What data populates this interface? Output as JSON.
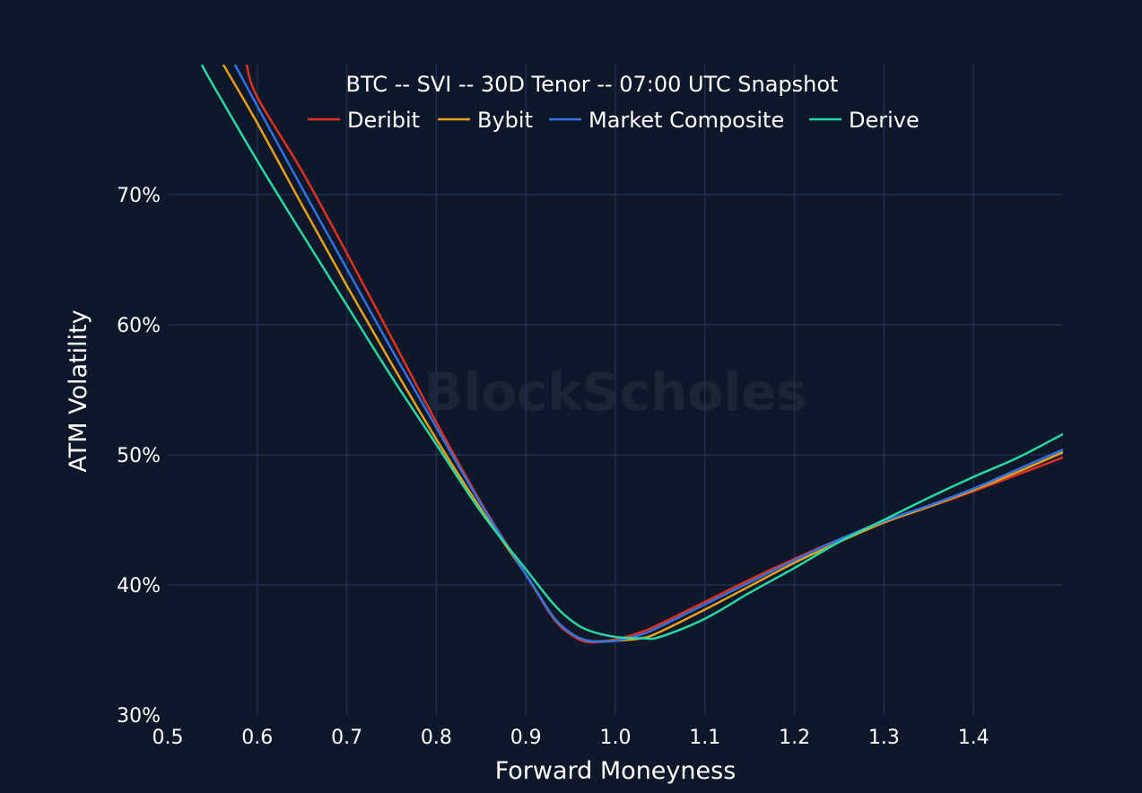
{
  "watermark": "BlockScholes",
  "chart_data": {
    "type": "line",
    "title": "BTC -- SVI -- 30D Tenor -- 07:00 UTC Snapshot",
    "xlabel": "Forward Moneyness",
    "ylabel": "ATM Volatility",
    "xlim": [
      0.5,
      1.5
    ],
    "ylim": [
      30,
      80
    ],
    "x_ticks": [
      0.5,
      0.6,
      0.7,
      0.8,
      0.9,
      1.0,
      1.1,
      1.2,
      1.3,
      1.4
    ],
    "x_tick_labels": [
      "0.5",
      "0.6",
      "0.7",
      "0.8",
      "0.9",
      "1.0",
      "1.1",
      "1.2",
      "1.3",
      "1.4"
    ],
    "y_ticks": [
      30,
      40,
      50,
      60,
      70
    ],
    "y_tick_labels": [
      "30%",
      "40%",
      "50%",
      "60%",
      "70%"
    ],
    "grid": true,
    "legend_position": "top-center",
    "background": "#0f182a",
    "grid_color": "#1f2f4e",
    "series": [
      {
        "name": "Deribit",
        "color": "#e0311f",
        "x": [
          0.588,
          0.6,
          0.65,
          0.7,
          0.75,
          0.8,
          0.85,
          0.9,
          0.93,
          0.95,
          0.97,
          1.0,
          1.03,
          1.05,
          1.1,
          1.15,
          1.2,
          1.25,
          1.3,
          1.35,
          1.4,
          1.45,
          1.5
        ],
        "y": [
          80.0,
          77.5,
          71.8,
          65.5,
          59.0,
          52.5,
          46.3,
          40.8,
          37.5,
          36.2,
          35.6,
          35.8,
          36.4,
          37.0,
          38.7,
          40.4,
          42.0,
          43.5,
          44.8,
          46.0,
          47.2,
          48.5,
          49.8
        ]
      },
      {
        "name": "Bybit",
        "color": "#e8a018",
        "x": [
          0.562,
          0.6,
          0.65,
          0.7,
          0.75,
          0.8,
          0.85,
          0.9,
          0.93,
          0.95,
          0.97,
          1.0,
          1.03,
          1.05,
          1.1,
          1.15,
          1.2,
          1.25,
          1.3,
          1.35,
          1.4,
          1.45,
          1.5
        ],
        "y": [
          80.0,
          75.5,
          69.2,
          63.0,
          57.0,
          51.2,
          45.8,
          40.8,
          37.6,
          36.3,
          35.7,
          35.7,
          35.9,
          36.4,
          38.1,
          39.9,
          41.7,
          43.3,
          44.8,
          46.0,
          47.3,
          48.7,
          50.2
        ]
      },
      {
        "name": "Market Composite",
        "color": "#2e72e6",
        "x": [
          0.575,
          0.6,
          0.65,
          0.7,
          0.75,
          0.8,
          0.85,
          0.9,
          0.93,
          0.95,
          0.97,
          1.0,
          1.03,
          1.05,
          1.1,
          1.15,
          1.2,
          1.25,
          1.3,
          1.35,
          1.4,
          1.45,
          1.5
        ],
        "y": [
          80.0,
          76.8,
          70.5,
          64.3,
          58.1,
          52.1,
          46.2,
          40.8,
          37.6,
          36.3,
          35.7,
          35.7,
          36.2,
          36.8,
          38.5,
          40.2,
          41.9,
          43.5,
          44.9,
          46.1,
          47.4,
          48.9,
          50.4
        ]
      },
      {
        "name": "Derive",
        "color": "#26d9a3",
        "x": [
          0.538,
          0.55,
          0.6,
          0.65,
          0.7,
          0.75,
          0.8,
          0.85,
          0.9,
          0.93,
          0.95,
          0.97,
          1.0,
          1.03,
          1.05,
          1.1,
          1.15,
          1.2,
          1.25,
          1.3,
          1.35,
          1.4,
          1.45,
          1.5
        ],
        "y": [
          80.0,
          78.5,
          72.6,
          67.0,
          61.5,
          56.0,
          50.8,
          45.6,
          41.2,
          38.6,
          37.3,
          36.5,
          36.0,
          35.9,
          36.0,
          37.4,
          39.4,
          41.3,
          43.3,
          45.0,
          46.7,
          48.3,
          49.8,
          51.6
        ]
      }
    ]
  }
}
